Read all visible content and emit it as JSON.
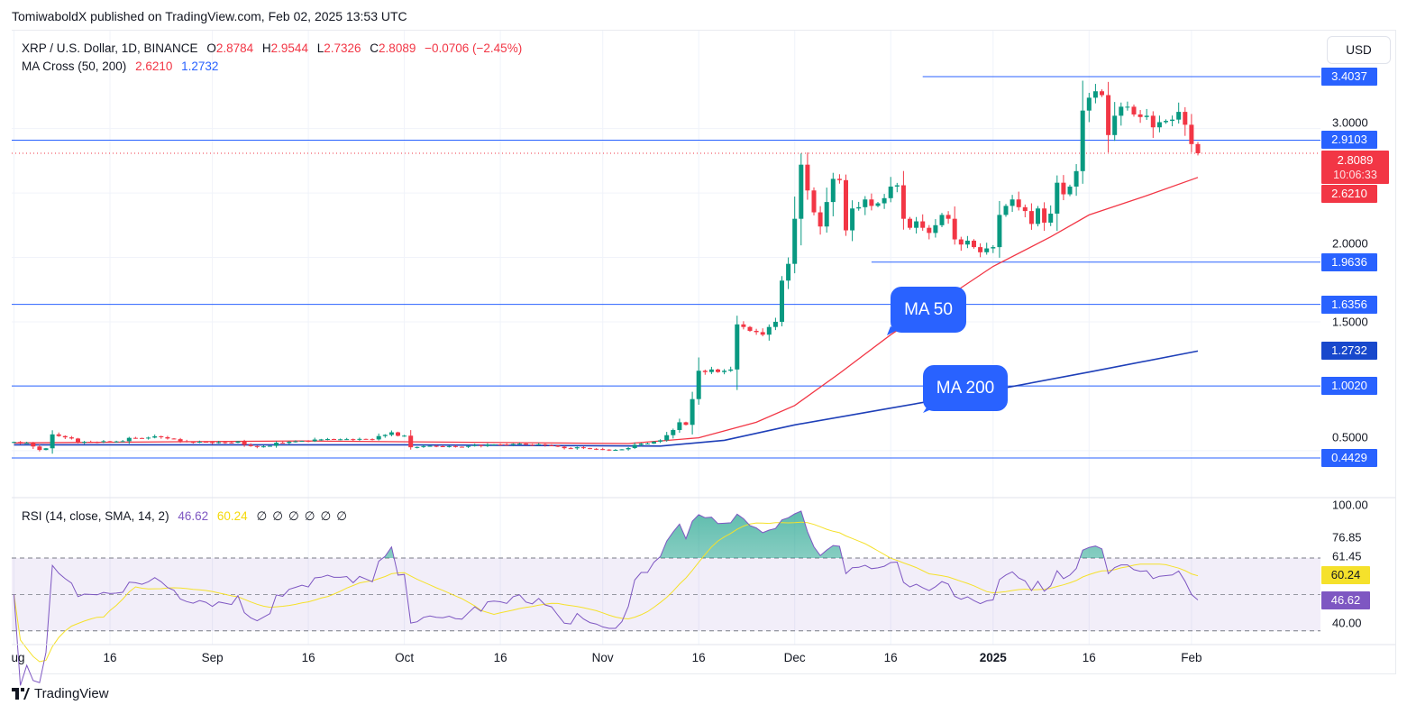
{
  "header": {
    "published": "TomiwaboldX published on TradingView.com, Feb 02, 2025 13:53 UTC"
  },
  "legend": {
    "symbol": "XRP / U.S. Dollar, 1D, BINANCE",
    "o_label": "O",
    "open": "2.8784",
    "h_label": "H",
    "high": "2.9544",
    "l_label": "L",
    "low": "2.7326",
    "c_label": "C",
    "close": "2.8089",
    "change": "−0.0706 (−2.45%)",
    "ma_title": "MA Cross (50, 200)",
    "ma50": "2.6210",
    "ma200": "1.2732"
  },
  "rsi_legend": {
    "title": "RSI (14, close, SMA, 14, 2)",
    "rsi": "46.62",
    "sma": "60.24",
    "extras": [
      "∅",
      "∅",
      "∅",
      "∅",
      "∅",
      "∅"
    ]
  },
  "currency": "USD",
  "price_axis": {
    "ticks": [
      "3.0000",
      "2.0000",
      "1.5000",
      "0.5000"
    ],
    "tick_values": [
      3.0,
      2.0,
      1.5,
      0.5
    ],
    "grid_values": [
      0.5,
      1.0,
      1.5,
      2.0,
      2.5,
      3.0
    ],
    "levels": [
      {
        "value": 3.4037,
        "label": "3.4037",
        "from": "2024-12-21"
      },
      {
        "value": 2.9103,
        "label": "2.9103",
        "from": null
      },
      {
        "value": 1.9636,
        "label": "1.9636",
        "from": "2024-12-13"
      },
      {
        "value": 1.6356,
        "label": "1.6356",
        "from": null
      },
      {
        "value": 1.002,
        "label": "1.0020",
        "from": null
      },
      {
        "value": 0.4429,
        "label": "0.4429",
        "from": null
      }
    ],
    "last_price": {
      "value": 2.8089,
      "label": "2.8089",
      "countdown": "10:06:33"
    },
    "ma50_badge": {
      "value": 2.621,
      "label": "2.6210"
    },
    "ma200_badge": {
      "value": 1.2732,
      "label": "1.2732"
    }
  },
  "rsi_axis": {
    "ticks": [
      {
        "label": "100.00",
        "value": 100
      },
      {
        "label": "76.85",
        "value": 76.85
      },
      {
        "label": "61.45",
        "value": 61.45
      },
      {
        "label": "40.00",
        "value": 40
      }
    ],
    "sma_badge": {
      "label": "60.24",
      "value": 60.24
    },
    "rsi_badge": {
      "label": "46.62",
      "value": 46.62
    },
    "bands": [
      70,
      50,
      30
    ]
  },
  "time_axis": [
    {
      "label": "Aug",
      "date": "2024-08-01"
    },
    {
      "label": "16",
      "date": "2024-08-16"
    },
    {
      "label": "Sep",
      "date": "2024-09-01"
    },
    {
      "label": "16",
      "date": "2024-09-16"
    },
    {
      "label": "Oct",
      "date": "2024-10-01"
    },
    {
      "label": "16",
      "date": "2024-10-16"
    },
    {
      "label": "Nov",
      "date": "2024-11-01"
    },
    {
      "label": "16",
      "date": "2024-11-16"
    },
    {
      "label": "Dec",
      "date": "2024-12-01"
    },
    {
      "label": "16",
      "date": "2024-12-16"
    },
    {
      "label": "2025",
      "date": "2025-01-01"
    },
    {
      "label": "16",
      "date": "2025-01-16"
    },
    {
      "label": "Feb",
      "date": "2025-02-01"
    }
  ],
  "callouts": {
    "ma50": "MA 50",
    "ma200": "MA 200"
  },
  "footer": {
    "brand": "TradingView"
  },
  "colors": {
    "up": "#089981",
    "down": "#f23645",
    "level": "#2962ff",
    "ma50": "#f23645",
    "ma200": "#1e3fb8",
    "rsi": "#7e57c2",
    "rsi_sma": "#f5e12b"
  },
  "chart_data": {
    "type": "candlestick",
    "title": "XRP / U.S. Dollar, 1D, BINANCE",
    "start_date": "2024-08-01",
    "end_date": "2025-02-02",
    "closes": [
      0.567,
      0.559,
      0.56,
      0.532,
      0.505,
      0.518,
      0.626,
      0.613,
      0.603,
      0.594,
      0.561,
      0.568,
      0.567,
      0.566,
      0.573,
      0.57,
      0.571,
      0.573,
      0.599,
      0.598,
      0.595,
      0.601,
      0.611,
      0.604,
      0.594,
      0.589,
      0.573,
      0.568,
      0.565,
      0.569,
      0.566,
      0.559,
      0.565,
      0.563,
      0.561,
      0.572,
      0.545,
      0.535,
      0.529,
      0.533,
      0.537,
      0.561,
      0.559,
      0.569,
      0.572,
      0.575,
      0.573,
      0.586,
      0.587,
      0.59,
      0.588,
      0.588,
      0.589,
      0.584,
      0.591,
      0.589,
      0.587,
      0.613,
      0.622,
      0.642,
      0.615,
      0.616,
      0.526,
      0.528,
      0.535,
      0.537,
      0.534,
      0.533,
      0.535,
      0.53,
      0.529,
      0.536,
      0.543,
      0.536,
      0.547,
      0.548,
      0.547,
      0.545,
      0.552,
      0.554,
      0.546,
      0.544,
      0.549,
      0.542,
      0.54,
      0.53,
      0.519,
      0.518,
      0.526,
      0.519,
      0.514,
      0.512,
      0.508,
      0.506,
      0.506,
      0.51,
      0.52,
      0.545,
      0.555,
      0.555,
      0.57,
      0.58,
      0.62,
      0.66,
      0.72,
      0.7,
      0.9,
      1.12,
      1.11,
      1.13,
      1.11,
      1.12,
      1.13,
      1.48,
      1.46,
      1.43,
      1.42,
      1.4,
      1.46,
      1.5,
      1.82,
      1.95,
      2.3,
      2.72,
      2.52,
      2.35,
      2.24,
      2.43,
      2.61,
      2.6,
      2.21,
      2.38,
      2.39,
      2.45,
      2.4,
      2.42,
      2.46,
      2.55,
      2.56,
      2.3,
      2.23,
      2.28,
      2.23,
      2.19,
      2.25,
      2.33,
      2.3,
      2.14,
      2.1,
      2.13,
      2.08,
      2.04,
      2.07,
      2.08,
      2.33,
      2.4,
      2.45,
      2.39,
      2.36,
      2.26,
      2.38,
      2.27,
      2.34,
      2.58,
      2.49,
      2.55,
      2.67,
      3.14,
      3.24,
      3.29,
      3.26,
      2.95,
      3.1,
      3.17,
      3.17,
      3.11,
      3.09,
      3.1,
      3.01,
      3.05,
      3.06,
      3.07,
      3.13,
      3.03,
      2.88,
      2.8089
    ],
    "ma50": [
      {
        "date": "2024-08-01",
        "value": 0.56
      },
      {
        "date": "2024-09-15",
        "value": 0.575
      },
      {
        "date": "2024-11-05",
        "value": 0.555
      },
      {
        "date": "2024-11-16",
        "value": 0.6
      },
      {
        "date": "2024-11-25",
        "value": 0.72
      },
      {
        "date": "2024-12-01",
        "value": 0.85
      },
      {
        "date": "2024-12-08",
        "value": 1.1
      },
      {
        "date": "2024-12-16",
        "value": 1.4
      },
      {
        "date": "2025-01-01",
        "value": 1.93
      },
      {
        "date": "2025-01-10",
        "value": 2.16
      },
      {
        "date": "2025-01-16",
        "value": 2.33
      },
      {
        "date": "2025-01-25",
        "value": 2.48
      },
      {
        "date": "2025-02-02",
        "value": 2.621
      }
    ],
    "ma200": [
      {
        "date": "2024-08-01",
        "value": 0.545
      },
      {
        "date": "2024-10-01",
        "value": 0.545
      },
      {
        "date": "2024-11-10",
        "value": 0.535
      },
      {
        "date": "2024-11-20",
        "value": 0.58
      },
      {
        "date": "2024-12-01",
        "value": 0.7
      },
      {
        "date": "2024-12-16",
        "value": 0.83
      },
      {
        "date": "2025-01-01",
        "value": 0.97
      },
      {
        "date": "2025-01-16",
        "value": 1.11
      },
      {
        "date": "2025-02-02",
        "value": 1.2732
      }
    ],
    "ylim": [
      0.36,
      3.65
    ],
    "rsi_range": [
      20,
      100
    ]
  }
}
